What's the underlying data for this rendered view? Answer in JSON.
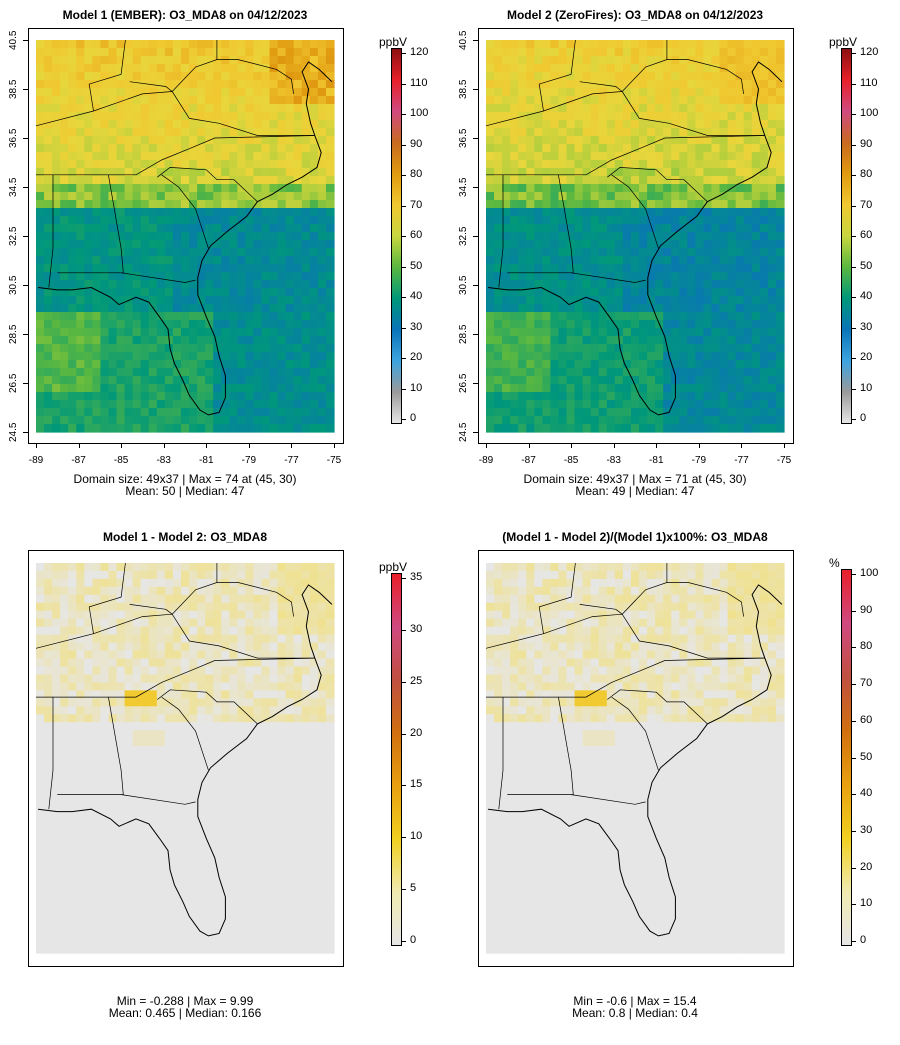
{
  "panels": [
    {
      "id": "p1",
      "title": "Model 1 (EMBER): O3_MDA8 on 04/12/2023",
      "stat_line1": "Domain size: 49x37 | Max = 74 at (45, 30)",
      "stat_line2": "Mean: 50 |  Median: 47",
      "colorbar_unit": "ppbV",
      "colorbar_ticks": [
        "0",
        "10",
        "20",
        "30",
        "40",
        "50",
        "60",
        "70",
        "80",
        "90",
        "100",
        "110",
        "120"
      ],
      "show_axes": true,
      "field": "abs"
    },
    {
      "id": "p2",
      "title": "Model 2 (ZeroFires): O3_MDA8 on 04/12/2023",
      "stat_line1": "Domain size: 49x37 | Max = 71 at (45, 30)",
      "stat_line2": "Mean: 49 |  Median: 47",
      "colorbar_unit": "ppbV",
      "colorbar_ticks": [
        "0",
        "10",
        "20",
        "30",
        "40",
        "50",
        "60",
        "70",
        "80",
        "90",
        "100",
        "110",
        "120"
      ],
      "show_axes": true,
      "field": "abs"
    },
    {
      "id": "p3",
      "title": "Model 1 - Model 2: O3_MDA8",
      "stat_line1": "Min = -0.288 | Max = 9.99",
      "stat_line2": "Mean: 0.465 |  Median: 0.166",
      "colorbar_unit": "ppbV",
      "colorbar_ticks": [
        "0",
        "5",
        "10",
        "15",
        "20",
        "25",
        "30",
        "35"
      ],
      "show_axes": false,
      "field": "diff"
    },
    {
      "id": "p4",
      "title": "(Model 1 - Model 2)/(Model 1)x100%: O3_MDA8",
      "stat_line1": "Min = -0.6 | Max = 15.4",
      "stat_line2": "Mean: 0.8 |  Median: 0.4",
      "colorbar_unit": "%",
      "colorbar_ticks": [
        "0",
        "10",
        "20",
        "30",
        "40",
        "50",
        "60",
        "70",
        "80",
        "90",
        "100"
      ],
      "show_axes": false,
      "field": "diff"
    }
  ],
  "axes": {
    "x_ticks": [
      "-89",
      "-87",
      "-85",
      "-83",
      "-81",
      "-79",
      "-77",
      "-75"
    ],
    "y_ticks": [
      "24.5",
      "26.5",
      "28.5",
      "30.5",
      "32.5",
      "34.5",
      "36.5",
      "38.5",
      "40.5"
    ]
  },
  "colors": {
    "abs_scale": [
      "#e6e6e6",
      "#9a9a9a",
      "#3da4e0",
      "#0a74b8",
      "#00987a",
      "#5bb840",
      "#c8d640",
      "#f0c830",
      "#e09a10",
      "#c86a20",
      "#d04a80",
      "#e8202a",
      "#8c1010"
    ],
    "diff_scale": [
      "#e6e6e6",
      "#f0eab0",
      "#f0d020",
      "#e8a010",
      "#d07010",
      "#c05040",
      "#d04a80",
      "#e8202a"
    ],
    "background_cell": "#e6e6e6"
  }
}
